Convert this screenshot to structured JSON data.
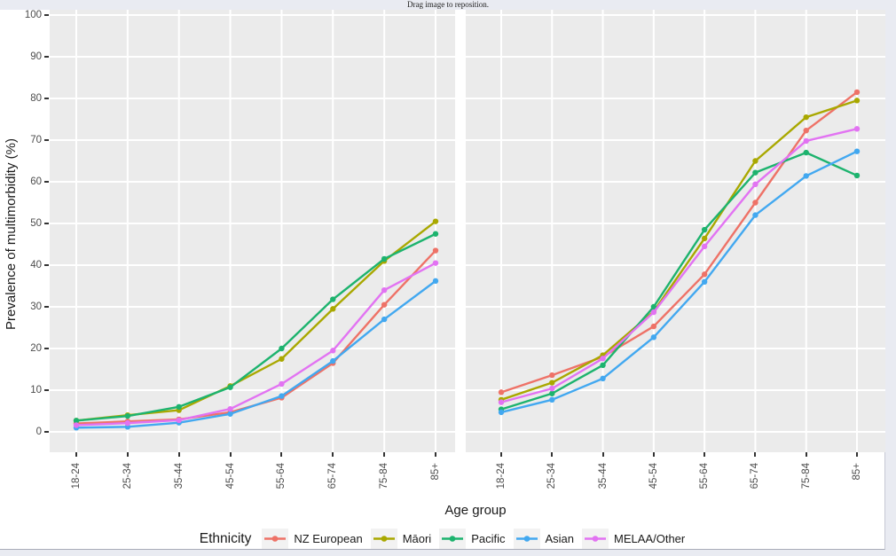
{
  "viewer": {
    "drag_hint": "Drag image to reposition."
  },
  "colors": {
    "page_background": "#e9ebf2",
    "chart_background": "#ffffff",
    "panel_background": "#ebebeb",
    "gridline": "#ffffff",
    "tick_text": "#4d4d4d",
    "axis_title_text": "#1a1a1a",
    "legend_key_background": "#f2f2f2"
  },
  "chart_data": {
    "type": "line",
    "title": "",
    "xlabel": "Age group",
    "ylabel": "Prevalence of multimorbidity (%)",
    "ylim": [
      0,
      100
    ],
    "yticks": [
      0,
      10,
      20,
      30,
      40,
      50,
      60,
      70,
      80,
      90,
      100
    ],
    "grid": true,
    "legend_title": "Ethnicity",
    "legend_position": "bottom",
    "categories": [
      "18-24",
      "25-34",
      "35-44",
      "45-54",
      "55-64",
      "65-74",
      "75-84",
      "85+"
    ],
    "facet_names": [
      "left-panel",
      "right-panel"
    ],
    "series": [
      {
        "name": "NZ European",
        "color": "#ee7267",
        "panels": [
          [
            2.0,
            2.5,
            3.0,
            4.7,
            8.2,
            16.5,
            30.5,
            43.5
          ],
          [
            9.5,
            13.6,
            18.0,
            25.3,
            37.8,
            55.0,
            72.3,
            81.5
          ]
        ]
      },
      {
        "name": "Māori",
        "color": "#a9a800",
        "panels": [
          [
            2.7,
            4.0,
            5.2,
            11.0,
            17.5,
            29.5,
            41.0,
            50.5
          ],
          [
            7.7,
            11.8,
            18.4,
            28.9,
            46.4,
            65.0,
            75.5,
            79.5
          ]
        ]
      },
      {
        "name": "Pacific",
        "color": "#1db36e",
        "panels": [
          [
            2.7,
            3.8,
            6.0,
            10.7,
            20.0,
            31.8,
            41.5,
            47.5
          ],
          [
            5.4,
            9.2,
            16.0,
            30.0,
            48.5,
            62.2,
            67.0,
            61.5
          ]
        ]
      },
      {
        "name": "Asian",
        "color": "#42a8f0",
        "panels": [
          [
            1.0,
            1.2,
            2.2,
            4.3,
            8.6,
            17.0,
            27.0,
            36.2
          ],
          [
            4.7,
            7.7,
            12.8,
            22.7,
            36.0,
            52.0,
            61.4,
            67.3
          ]
        ]
      },
      {
        "name": "MELAA/Other",
        "color": "#e273f2",
        "panels": [
          [
            1.6,
            2.1,
            2.8,
            5.5,
            11.5,
            19.5,
            34.0,
            40.5
          ],
          [
            7.1,
            10.4,
            17.6,
            28.7,
            44.5,
            59.4,
            69.8,
            72.7
          ]
        ]
      }
    ]
  }
}
